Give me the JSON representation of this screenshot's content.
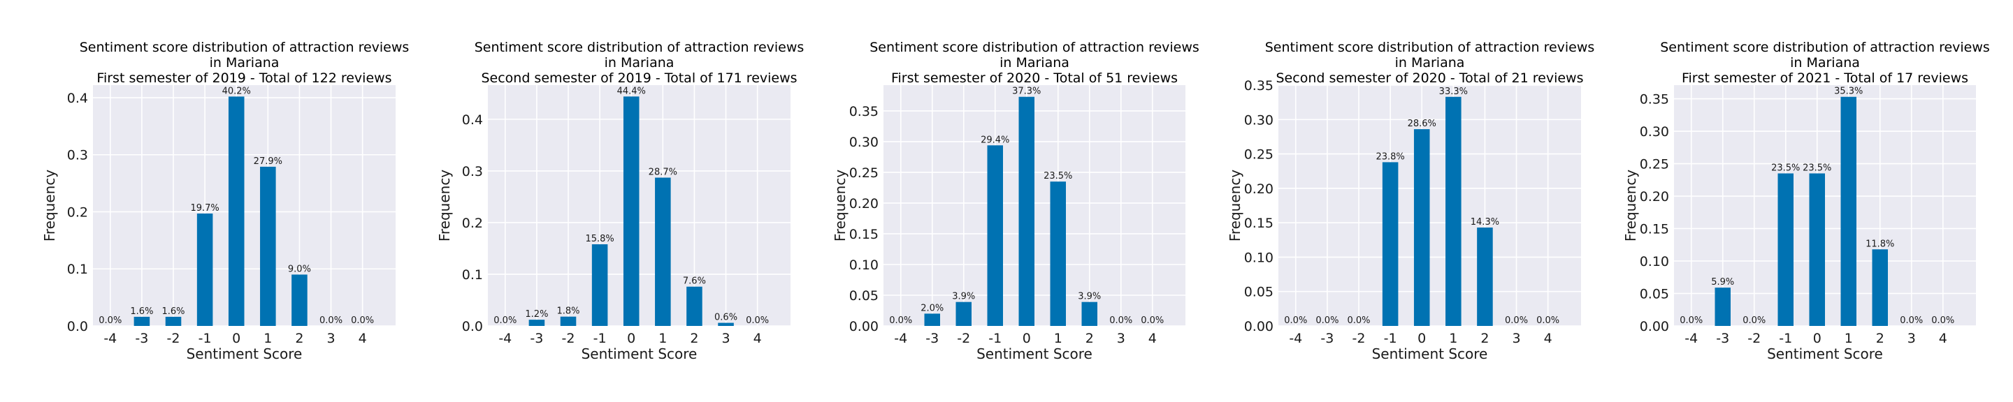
{
  "chart_data": [
    {
      "type": "bar",
      "title": [
        "Sentiment score distribution of attraction reviews",
        "in Mariana",
        "First semester of 2019 - Total of 122 reviews"
      ],
      "xlabel": "Sentiment Score",
      "ylabel": "Frequency",
      "categories": [
        "-4",
        "-3",
        "-2",
        "-1",
        "0",
        "1",
        "2",
        "3",
        "4"
      ],
      "values": [
        0.0,
        0.016,
        0.016,
        0.197,
        0.402,
        0.279,
        0.09,
        0.0,
        0.0
      ],
      "data_labels": [
        "0.0%",
        "1.6%",
        "1.6%",
        "19.7%",
        "40.2%",
        "27.9%",
        "9.0%",
        "0.0%",
        "0.0%"
      ],
      "yticks": [
        0.0,
        0.1,
        0.2,
        0.3,
        0.4
      ],
      "ytick_labels": [
        "0.0",
        "0.1",
        "0.2",
        "0.3",
        "0.4"
      ],
      "ylim": [
        0,
        0.422
      ],
      "grid": true
    },
    {
      "type": "bar",
      "title": [
        "Sentiment score distribution of attraction reviews",
        "in Mariana",
        "Second semester of 2019 - Total of 171 reviews"
      ],
      "xlabel": "Sentiment Score",
      "ylabel": "Frequency",
      "categories": [
        "-4",
        "-3",
        "-2",
        "-1",
        "0",
        "1",
        "2",
        "3",
        "4"
      ],
      "values": [
        0.0,
        0.012,
        0.018,
        0.158,
        0.444,
        0.287,
        0.076,
        0.006,
        0.0
      ],
      "data_labels": [
        "0.0%",
        "1.2%",
        "1.8%",
        "15.8%",
        "44.4%",
        "28.7%",
        "7.6%",
        "0.6%",
        "0.0%"
      ],
      "yticks": [
        0.0,
        0.1,
        0.2,
        0.3,
        0.4
      ],
      "ytick_labels": [
        "0.0",
        "0.1",
        "0.2",
        "0.3",
        "0.4"
      ],
      "ylim": [
        0,
        0.466
      ],
      "grid": true
    },
    {
      "type": "bar",
      "title": [
        "Sentiment score distribution of attraction reviews",
        "in Mariana",
        "First semester of 2020 - Total of 51 reviews"
      ],
      "xlabel": "Sentiment Score",
      "ylabel": "Frequency",
      "categories": [
        "-4",
        "-3",
        "-2",
        "-1",
        "0",
        "1",
        "2",
        "3",
        "4"
      ],
      "values": [
        0.0,
        0.02,
        0.039,
        0.294,
        0.373,
        0.235,
        0.039,
        0.0,
        0.0
      ],
      "data_labels": [
        "0.0%",
        "2.0%",
        "3.9%",
        "29.4%",
        "37.3%",
        "23.5%",
        "3.9%",
        "0.0%",
        "0.0%"
      ],
      "yticks": [
        0.0,
        0.05,
        0.1,
        0.15,
        0.2,
        0.25,
        0.3,
        0.35
      ],
      "ytick_labels": [
        "0.00",
        "0.05",
        "0.10",
        "0.15",
        "0.20",
        "0.25",
        "0.30",
        "0.35"
      ],
      "ylim": [
        0,
        0.392
      ],
      "grid": true
    },
    {
      "type": "bar",
      "title": [
        "Sentiment score distribution of attraction reviews",
        "in Mariana",
        "Second semester of 2020 - Total of 21 reviews"
      ],
      "xlabel": "Sentiment Score",
      "ylabel": "Frequency",
      "categories": [
        "-4",
        "-3",
        "-2",
        "-1",
        "0",
        "1",
        "2",
        "3",
        "4"
      ],
      "values": [
        0.0,
        0.0,
        0.0,
        0.238,
        0.286,
        0.333,
        0.143,
        0.0,
        0.0
      ],
      "data_labels": [
        "0.0%",
        "0.0%",
        "0.0%",
        "23.8%",
        "28.6%",
        "33.3%",
        "14.3%",
        "0.0%",
        "0.0%"
      ],
      "yticks": [
        0.0,
        0.05,
        0.1,
        0.15,
        0.2,
        0.25,
        0.3,
        0.35
      ],
      "ytick_labels": [
        "0.00",
        "0.05",
        "0.10",
        "0.15",
        "0.20",
        "0.25",
        "0.30",
        "0.35"
      ],
      "ylim": [
        0,
        0.35
      ],
      "grid": true
    },
    {
      "type": "bar",
      "title": [
        "Sentiment score distribution of attraction reviews",
        "in Mariana",
        "First semester of 2021 - Total of 17 reviews"
      ],
      "xlabel": "Sentiment Score",
      "ylabel": "Frequency",
      "categories": [
        "-4",
        "-3",
        "-2",
        "-1",
        "0",
        "1",
        "2",
        "3",
        "4"
      ],
      "values": [
        0.0,
        0.059,
        0.0,
        0.235,
        0.235,
        0.353,
        0.118,
        0.0,
        0.0
      ],
      "data_labels": [
        "0.0%",
        "5.9%",
        "0.0%",
        "23.5%",
        "23.5%",
        "35.3%",
        "11.8%",
        "0.0%",
        "0.0%"
      ],
      "yticks": [
        0.0,
        0.05,
        0.1,
        0.15,
        0.2,
        0.25,
        0.3,
        0.35
      ],
      "ytick_labels": [
        "0.00",
        "0.05",
        "0.10",
        "0.15",
        "0.20",
        "0.25",
        "0.30",
        "0.35"
      ],
      "ylim": [
        0,
        0.371
      ],
      "grid": true
    }
  ],
  "colors": {
    "bar": "#0072b2",
    "plot_background": "#eaeaf2",
    "grid": "#ffffff",
    "text": "#1a1a1a"
  }
}
